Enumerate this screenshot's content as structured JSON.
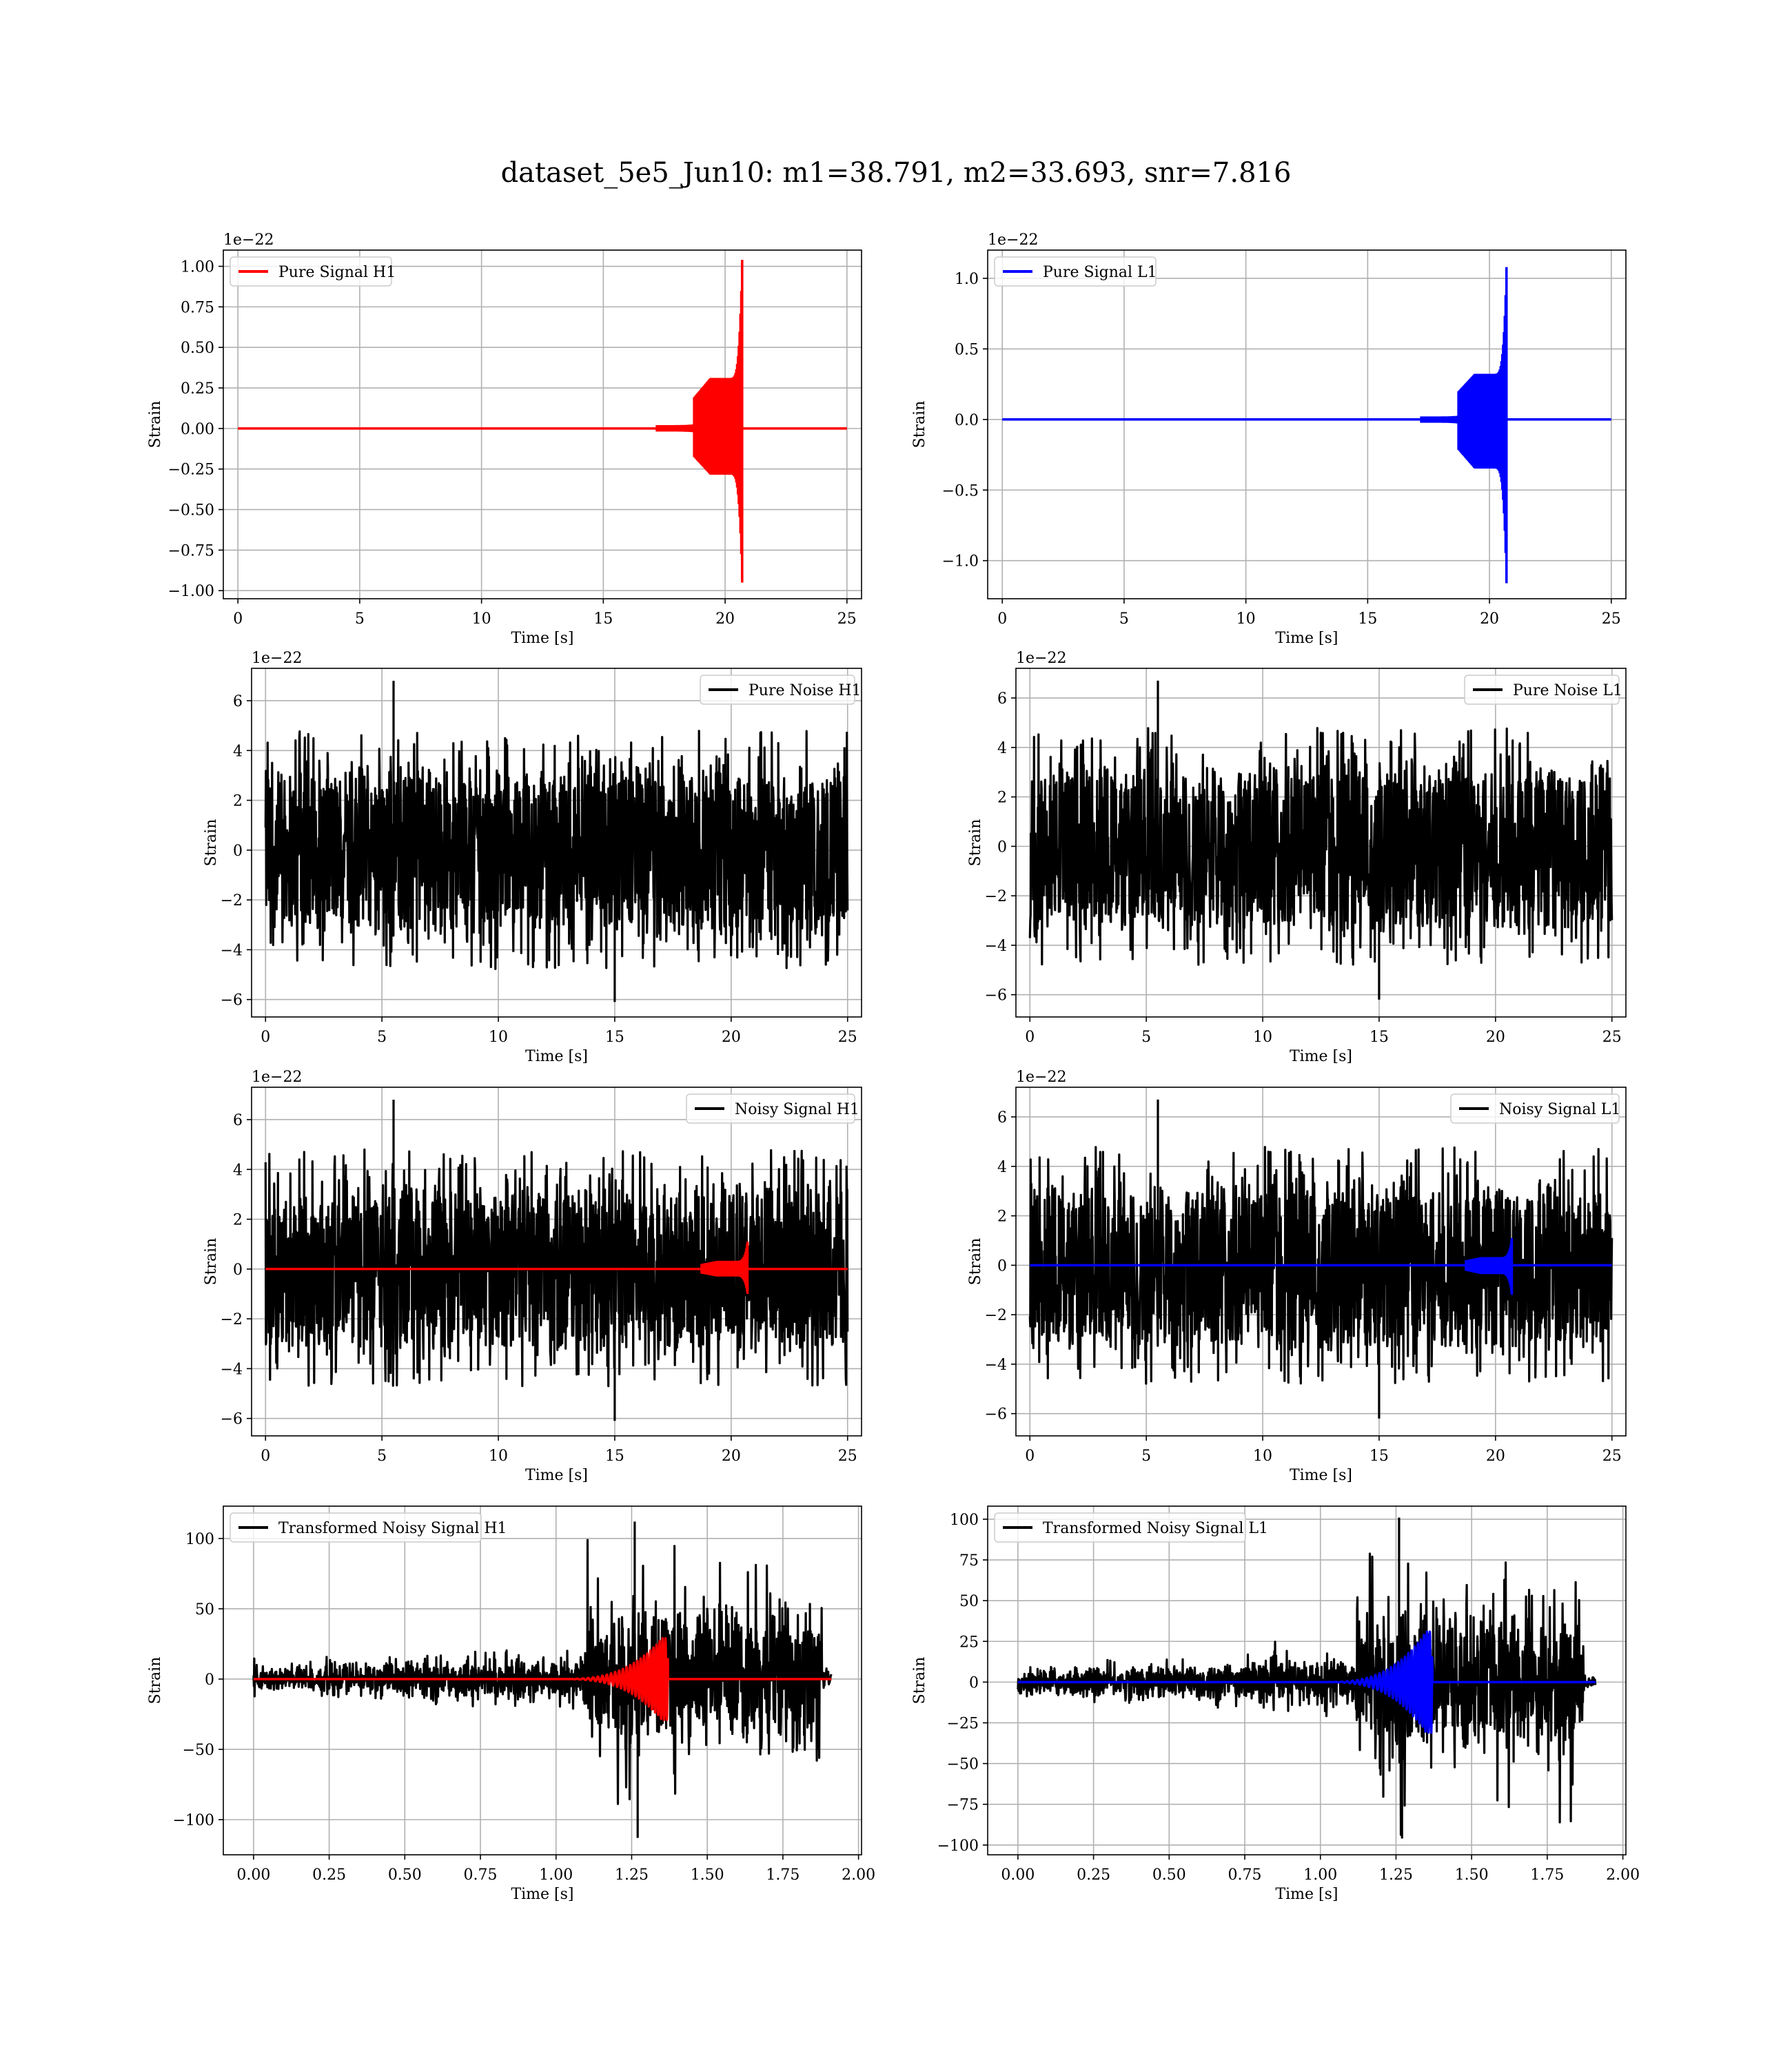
{
  "figure": {
    "title": "dataset_5e5_Jun10: m1=38.791, m2=33.693, snr=7.816"
  },
  "colors": {
    "h1_signal": "#ff0000",
    "l1_signal": "#0000ff",
    "noise": "#000000",
    "grid": "#b0b0b0"
  },
  "chart_data": [
    {
      "type": "line",
      "title": "",
      "xlabel": "Time [s]",
      "ylabel": "Strain",
      "offset_text": "1e−22",
      "grid": true,
      "legend_position": "upper-left",
      "xlim": [
        -0.6,
        25.6
      ],
      "ylim": [
        -1.05,
        1.1
      ],
      "xticks": [
        0,
        5,
        10,
        15,
        20,
        25
      ],
      "xtick_labels": [
        "0",
        "5",
        "10",
        "15",
        "20",
        "25"
      ],
      "yticks": [
        -1.0,
        -0.75,
        -0.5,
        -0.25,
        0.0,
        0.25,
        0.5,
        0.75,
        1.0
      ],
      "ytick_labels": [
        "−1.00",
        "−0.75",
        "−0.50",
        "−0.25",
        "0.00",
        "0.25",
        "0.50",
        "0.75",
        "1.00"
      ],
      "series": [
        {
          "name": "Pure Signal H1",
          "color": "#ff0000",
          "kind": "chirp",
          "x_range": [
            0,
            25
          ],
          "merger": 20.7,
          "start": 18.7,
          "peak_pos": 1.04,
          "peak_neg": -0.95
        }
      ]
    },
    {
      "type": "line",
      "title": "",
      "xlabel": "Time [s]",
      "ylabel": "Strain",
      "offset_text": "1e−22",
      "grid": true,
      "legend_position": "upper-left",
      "xlim": [
        -0.6,
        25.6
      ],
      "ylim": [
        -1.27,
        1.2
      ],
      "xticks": [
        0,
        5,
        10,
        15,
        20,
        25
      ],
      "xtick_labels": [
        "0",
        "5",
        "10",
        "15",
        "20",
        "25"
      ],
      "yticks": [
        -1.0,
        -0.5,
        0.0,
        0.5,
        1.0
      ],
      "ytick_labels": [
        "−1.0",
        "−0.5",
        "0.0",
        "0.5",
        "1.0"
      ],
      "series": [
        {
          "name": "Pure Signal L1",
          "color": "#0000ff",
          "kind": "chirp",
          "x_range": [
            0,
            25
          ],
          "merger": 20.7,
          "start": 18.7,
          "peak_pos": 1.08,
          "peak_neg": -1.16
        }
      ]
    },
    {
      "type": "line",
      "title": "",
      "xlabel": "Time [s]",
      "ylabel": "Strain",
      "offset_text": "1e−22",
      "grid": true,
      "legend_position": "upper-right",
      "xlim": [
        -0.6,
        25.6
      ],
      "ylim": [
        -6.7,
        7.3
      ],
      "xticks": [
        0,
        5,
        10,
        15,
        20,
        25
      ],
      "xtick_labels": [
        "0",
        "5",
        "10",
        "15",
        "20",
        "25"
      ],
      "yticks": [
        -6,
        -4,
        -2,
        0,
        2,
        4,
        6
      ],
      "ytick_labels": [
        "−6",
        "−4",
        "−2",
        "0",
        "2",
        "4",
        "6"
      ],
      "series": [
        {
          "name": "Pure Noise H1",
          "color": "#000000",
          "kind": "noise",
          "x_range": [
            0,
            25
          ],
          "band": 3.0,
          "max": 6.8,
          "min": -6.1
        }
      ]
    },
    {
      "type": "line",
      "title": "",
      "xlabel": "Time [s]",
      "ylabel": "Strain",
      "offset_text": "1e−22",
      "grid": true,
      "legend_position": "upper-right",
      "xlim": [
        -0.6,
        25.6
      ],
      "ylim": [
        -6.9,
        7.2
      ],
      "xticks": [
        0,
        5,
        10,
        15,
        20,
        25
      ],
      "xtick_labels": [
        "0",
        "5",
        "10",
        "15",
        "20",
        "25"
      ],
      "yticks": [
        -6,
        -4,
        -2,
        0,
        2,
        4,
        6
      ],
      "ytick_labels": [
        "−6",
        "−4",
        "−2",
        "0",
        "2",
        "4",
        "6"
      ],
      "series": [
        {
          "name": "Pure Noise L1",
          "color": "#000000",
          "kind": "noise",
          "x_range": [
            0,
            25
          ],
          "band": 3.0,
          "max": 6.7,
          "min": -6.2
        }
      ]
    },
    {
      "type": "line",
      "title": "",
      "xlabel": "Time [s]",
      "ylabel": "Strain",
      "offset_text": "1e−22",
      "grid": true,
      "legend_position": "upper-right",
      "xlim": [
        -0.6,
        25.6
      ],
      "ylim": [
        -6.7,
        7.3
      ],
      "xticks": [
        0,
        5,
        10,
        15,
        20,
        25
      ],
      "xtick_labels": [
        "0",
        "5",
        "10",
        "15",
        "20",
        "25"
      ],
      "yticks": [
        -6,
        -4,
        -2,
        0,
        2,
        4,
        6
      ],
      "ytick_labels": [
        "−6",
        "−4",
        "−2",
        "0",
        "2",
        "4",
        "6"
      ],
      "series": [
        {
          "name": "Noisy Signal H1",
          "color": "#000000",
          "kind": "noise",
          "x_range": [
            0,
            25
          ],
          "band": 3.0,
          "max": 6.8,
          "min": -6.1
        },
        {
          "name": "",
          "color": "#ff0000",
          "kind": "chirp",
          "x_range": [
            0,
            25
          ],
          "merger": 20.7,
          "start": 18.7,
          "peak_pos": 1.1,
          "peak_neg": -1.0
        }
      ]
    },
    {
      "type": "line",
      "title": "",
      "xlabel": "Time [s]",
      "ylabel": "Strain",
      "offset_text": "1e−22",
      "grid": true,
      "legend_position": "upper-right",
      "xlim": [
        -0.6,
        25.6
      ],
      "ylim": [
        -6.9,
        7.2
      ],
      "xticks": [
        0,
        5,
        10,
        15,
        20,
        25
      ],
      "xtick_labels": [
        "0",
        "5",
        "10",
        "15",
        "20",
        "25"
      ],
      "yticks": [
        -6,
        -4,
        -2,
        0,
        2,
        4,
        6
      ],
      "ytick_labels": [
        "−6",
        "−4",
        "−2",
        "0",
        "2",
        "4",
        "6"
      ],
      "series": [
        {
          "name": "Noisy Signal L1",
          "color": "#000000",
          "kind": "noise",
          "x_range": [
            0,
            25
          ],
          "band": 3.0,
          "max": 6.7,
          "min": -6.2
        },
        {
          "name": "",
          "color": "#0000ff",
          "kind": "chirp",
          "x_range": [
            0,
            25
          ],
          "merger": 20.7,
          "start": 18.7,
          "peak_pos": 1.1,
          "peak_neg": -1.2
        }
      ]
    },
    {
      "type": "line",
      "title": "",
      "xlabel": "Time [s]",
      "ylabel": "Strain",
      "offset_text": "",
      "grid": true,
      "legend_position": "upper-left",
      "xlim": [
        -0.1,
        2.01
      ],
      "ylim": [
        -125,
        123
      ],
      "xticks": [
        0,
        0.25,
        0.5,
        0.75,
        1.0,
        1.25,
        1.5,
        1.75,
        2.0
      ],
      "xtick_labels": [
        "0.00",
        "0.25",
        "0.50",
        "0.75",
        "1.00",
        "1.25",
        "1.50",
        "1.75",
        "2.00"
      ],
      "yticks": [
        -100,
        -50,
        0,
        50,
        100
      ],
      "ytick_labels": [
        "−100",
        "−50",
        "0",
        "50",
        "100"
      ],
      "series": [
        {
          "name": "Transformed Noisy Signal H1",
          "color": "#000000",
          "kind": "whitened",
          "x_range": [
            0,
            1.91
          ],
          "jump": 1.1,
          "end_band": 1.88,
          "low_band": 8,
          "high_band": 45,
          "max": 112,
          "min": -113
        },
        {
          "name": "",
          "color": "#ff0000",
          "kind": "whitened_chirp",
          "x_range": [
            0,
            1.91
          ],
          "start": 1.0,
          "merger": 1.35,
          "peak_pos": 29,
          "peak_neg": -30
        }
      ]
    },
    {
      "type": "line",
      "title": "",
      "xlabel": "Time [s]",
      "ylabel": "Strain",
      "offset_text": "",
      "grid": true,
      "legend_position": "upper-left",
      "xlim": [
        -0.1,
        2.01
      ],
      "ylim": [
        -106,
        108
      ],
      "xticks": [
        0,
        0.25,
        0.5,
        0.75,
        1.0,
        1.25,
        1.5,
        1.75,
        2.0
      ],
      "xtick_labels": [
        "0.00",
        "0.25",
        "0.50",
        "0.75",
        "1.00",
        "1.25",
        "1.50",
        "1.75",
        "2.00"
      ],
      "yticks": [
        -100,
        -75,
        -50,
        -25,
        0,
        25,
        50,
        75,
        100
      ],
      "ytick_labels": [
        "−100",
        "−75",
        "−50",
        "−25",
        "0",
        "25",
        "50",
        "75",
        "100"
      ],
      "series": [
        {
          "name": "Transformed Noisy Signal L1",
          "color": "#000000",
          "kind": "whitened",
          "x_range": [
            0,
            1.91
          ],
          "jump": 1.12,
          "end_band": 1.87,
          "low_band": 7,
          "high_band": 40,
          "max": 101,
          "min": -96
        },
        {
          "name": "",
          "color": "#0000ff",
          "kind": "whitened_chirp",
          "x_range": [
            0,
            1.91
          ],
          "start": 1.0,
          "merger": 1.35,
          "peak_pos": 31,
          "peak_neg": -31
        }
      ]
    }
  ]
}
